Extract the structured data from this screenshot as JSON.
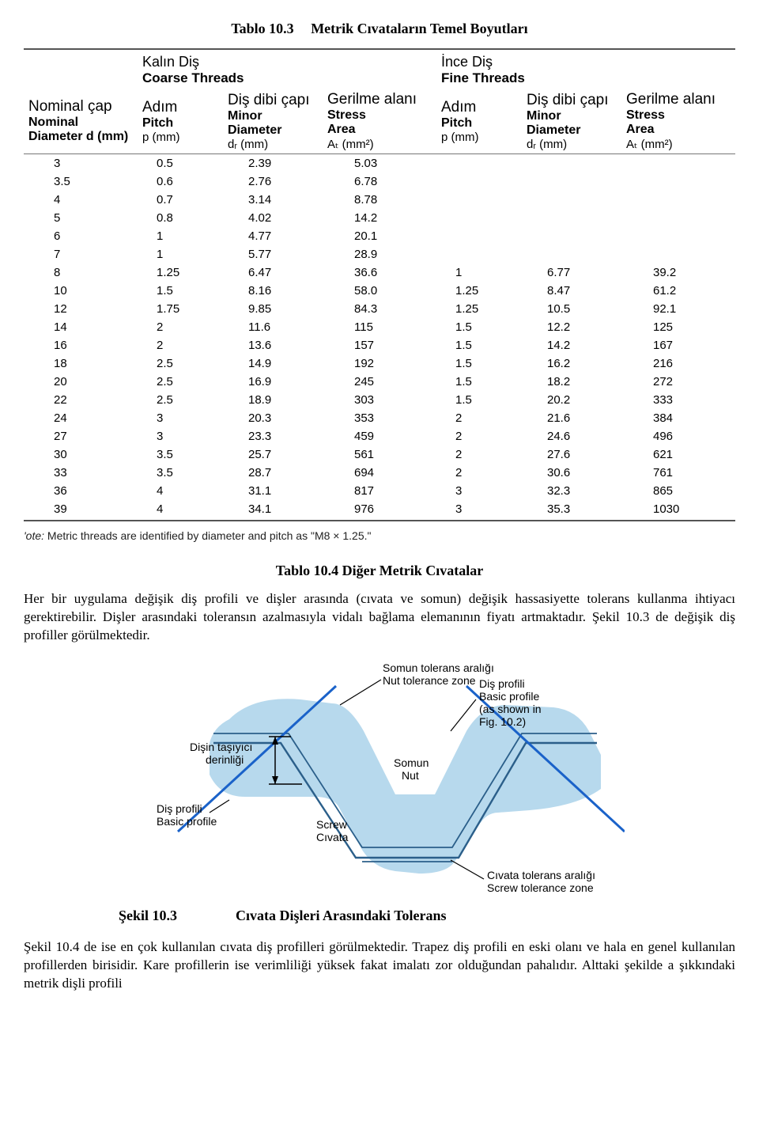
{
  "titles": {
    "table10_3_lbl": "Tablo 10.3",
    "table10_3_txt": "Metrik Cıvataların Temel Boyutları",
    "table10_4_lbl": "Tablo 10.4 Diğer Metrik Cıvatalar",
    "fig10_3_lbl": "Şekil 10.3",
    "fig10_3_txt": "Cıvata Dişleri Arasındaki Tolerans"
  },
  "groups": {
    "coarse_tr": "Kalın Diş",
    "coarse_en": "Coarse Threads",
    "fine_tr": "İnce Diş",
    "fine_en": "Fine Threads"
  },
  "columns": {
    "c1_tr": "Nominal çap",
    "c1_en1": "Nominal",
    "c1_en2": "Diameter d (mm)",
    "c2_tr": "Adım",
    "c2_en1": "Pitch",
    "c2_en2": "p (mm)",
    "c3_tr": "Diş dibi çapı",
    "c3_en1": "Minor",
    "c3_en2": "Diameter",
    "c3_en3": "dᵣ (mm)",
    "c4_tr": "Gerilme alanı",
    "c4_en1": "Stress",
    "c4_en2": "Area",
    "c4_en3": "Aₜ (mm²)",
    "c5_tr": "Adım",
    "c5_en1": "Pitch",
    "c5_en2": "p (mm)",
    "c6_tr": "Diş dibi çapı",
    "c6_en1": "Minor",
    "c6_en2": "Diameter",
    "c6_en3": "dᵣ (mm)",
    "c7_tr": "Gerilme alanı",
    "c7_en1": "Stress",
    "c7_en2": "Area",
    "c7_en3": "Aₜ (mm²)"
  },
  "rows": [
    [
      "3",
      "0.5",
      "2.39",
      "5.03",
      "",
      "",
      ""
    ],
    [
      "3.5",
      "0.6",
      "2.76",
      "6.78",
      "",
      "",
      ""
    ],
    [
      "4",
      "0.7",
      "3.14",
      "8.78",
      "",
      "",
      ""
    ],
    [
      "5",
      "0.8",
      "4.02",
      "14.2",
      "",
      "",
      ""
    ],
    [
      "6",
      "1",
      "4.77",
      "20.1",
      "",
      "",
      ""
    ],
    [
      "7",
      "1",
      "5.77",
      "28.9",
      "",
      "",
      ""
    ],
    [
      "8",
      "1.25",
      "6.47",
      "36.6",
      "1",
      "6.77",
      "39.2"
    ],
    [
      "10",
      "1.5",
      "8.16",
      "58.0",
      "1.25",
      "8.47",
      "61.2"
    ],
    [
      "12",
      "1.75",
      "9.85",
      "84.3",
      "1.25",
      "10.5",
      "92.1"
    ],
    [
      "14",
      "2",
      "11.6",
      "115",
      "1.5",
      "12.2",
      "125"
    ],
    [
      "16",
      "2",
      "13.6",
      "157",
      "1.5",
      "14.2",
      "167"
    ],
    [
      "18",
      "2.5",
      "14.9",
      "192",
      "1.5",
      "16.2",
      "216"
    ],
    [
      "20",
      "2.5",
      "16.9",
      "245",
      "1.5",
      "18.2",
      "272"
    ],
    [
      "22",
      "2.5",
      "18.9",
      "303",
      "1.5",
      "20.2",
      "333"
    ],
    [
      "24",
      "3",
      "20.3",
      "353",
      "2",
      "21.6",
      "384"
    ],
    [
      "27",
      "3",
      "23.3",
      "459",
      "2",
      "24.6",
      "496"
    ],
    [
      "30",
      "3.5",
      "25.7",
      "561",
      "2",
      "27.6",
      "621"
    ],
    [
      "33",
      "3.5",
      "28.7",
      "694",
      "2",
      "30.6",
      "761"
    ],
    [
      "36",
      "4",
      "31.1",
      "817",
      "3",
      "32.3",
      "865"
    ],
    [
      "39",
      "4",
      "34.1",
      "976",
      "3",
      "35.3",
      "1030"
    ]
  ],
  "note_prefix": "'ote:",
  "note_text": " Metric threads are identified by diameter and pitch as \"M8 × 1.25.\"",
  "paragraph1": "Her bir uygulama değişik diş profili ve dişler arasında (cıvata ve somun) değişik hassasiyette tolerans kullanma ihtiyacı gerektirebilir. Dişler arasındaki toleransın azalmasıyla vidalı bağlama elemanının fiyatı artmaktadır. Şekil 10.3 de değişik diş profiller görülmektedir.",
  "paragraph2": "Şekil 10.4 de ise en çok kullanılan cıvata diş profilleri görülmektedir. Trapez diş profili en eski olanı ve hala en genel kullanılan profillerden birisidir. Kare profillerin ise verimliliği yüksek fakat imalatı zor olduğundan pahalıdır. Alttaki şekilde a şıkkındaki metrik dişli profili",
  "fig": {
    "colors": {
      "shade": "#b7d9ed",
      "line_dark": "#2b5f8a",
      "line_blue": "#1a62c9",
      "text": "#000000"
    },
    "labels": {
      "nut_tol_tr": "Somun tolerans aralığı",
      "nut_tol_en": "Nut tolerance zone",
      "basic_tr": "Diş profili",
      "basic_en1": "Basic profile",
      "basic_en2": "(as shown in",
      "basic_en3": "Fig. 10.2)",
      "depth_tr1": "Dişin taşıyıcı",
      "depth_tr2": "derinliği",
      "left_tr": "Diş profili",
      "left_en": "Basic profile",
      "nut_tr": "Somun",
      "nut_en": "Nut",
      "screw_en": "Screw",
      "screw_tr": "Cıvata",
      "screw_tol_tr": "Cıvata tolerans aralığı",
      "screw_tol_en": "Screw tolerance zone"
    }
  }
}
